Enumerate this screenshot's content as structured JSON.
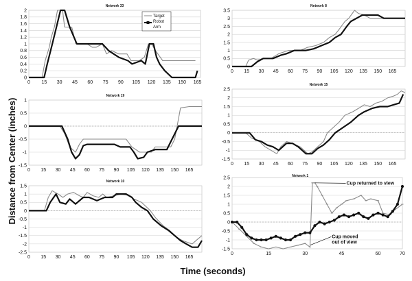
{
  "figure": {
    "ylabel": "Distance from Center (inches)",
    "xlabel": "Time (seconds)"
  },
  "chart_data": [
    {
      "type": "line",
      "title": "Network 33",
      "xlim": [
        0,
        168
      ],
      "ylim": [
        0,
        2
      ],
      "xticks": [
        0,
        15,
        30,
        45,
        60,
        75,
        90,
        105,
        120,
        135,
        150,
        165
      ],
      "yticks": [
        0,
        0.2,
        0.4,
        0.6,
        0.8,
        1,
        1.2,
        1.4,
        1.6,
        1.8,
        2
      ],
      "ytick_labels": [
        "0",
        "0.2",
        "0.4",
        "0.6",
        "0.8",
        "1",
        "1.2",
        "1.4",
        "1.6",
        "1.8",
        "2"
      ],
      "legend": {
        "placement": "top-center",
        "entries": [
          "Target",
          "Robot Arm"
        ]
      },
      "series": [
        {
          "name": "Target",
          "color": "#8a8a8a",
          "x": [
            0,
            13,
            16,
            20,
            22,
            25,
            28,
            33,
            35,
            42,
            46,
            57,
            62,
            66,
            72,
            76,
            81,
            88,
            96,
            100,
            108,
            113,
            117,
            120,
            124,
            131,
            137,
            163
          ],
          "y": [
            0,
            0,
            0.5,
            0.9,
            1.2,
            1.5,
            2,
            2,
            1.5,
            1.5,
            1,
            1,
            0.9,
            0.9,
            1,
            0.7,
            0.8,
            0.7,
            0.7,
            0.5,
            0.5,
            0.6,
            1,
            1,
            0.8,
            0.5,
            0.5,
            0.5
          ]
        },
        {
          "name": "Robot Arm",
          "color": "#111111",
          "x": [
            0,
            15,
            18,
            23,
            27,
            31,
            35,
            40,
            47,
            58,
            72,
            78,
            88,
            97,
            101,
            110,
            114,
            118,
            122,
            125,
            128,
            133,
            140,
            163,
            165
          ],
          "y": [
            0,
            0,
            0.4,
            1,
            1.5,
            2,
            2,
            1.5,
            1,
            1,
            1,
            0.8,
            0.6,
            0.5,
            0.4,
            0.5,
            0.4,
            1,
            1,
            0.6,
            0.4,
            0.2,
            0,
            0,
            0.2
          ]
        }
      ]
    },
    {
      "type": "line",
      "title": "Network 19",
      "xlim": [
        0,
        178
      ],
      "ylim": [
        -1.5,
        1
      ],
      "xticks": [
        0,
        15,
        30,
        45,
        60,
        75,
        90,
        105,
        120,
        135,
        150,
        165
      ],
      "yticks": [
        -1.5,
        -1,
        -0.5,
        0,
        0.5,
        1
      ],
      "ytick_labels": [
        "-1.5",
        "-1",
        "-0.5",
        "0",
        "0.5",
        "1"
      ],
      "series": [
        {
          "name": "Target",
          "color": "#8a8a8a",
          "x": [
            0,
            32,
            37,
            42,
            48,
            52,
            54,
            56,
            60,
            100,
            106,
            114,
            126,
            130,
            146,
            150,
            156,
            165,
            178
          ],
          "y": [
            0,
            0,
            -0.3,
            -0.8,
            -1,
            -0.7,
            -0.6,
            -0.5,
            -0.5,
            -0.5,
            -0.8,
            -1,
            -1,
            -0.8,
            -0.8,
            -0.5,
            0.7,
            0.75,
            0.75
          ]
        },
        {
          "name": "Robot Arm",
          "color": "#111111",
          "x": [
            0,
            34,
            40,
            44,
            48,
            52,
            56,
            60,
            88,
            94,
            104,
            108,
            112,
            118,
            122,
            130,
            142,
            146,
            150,
            154,
            178
          ],
          "y": [
            0,
            0,
            -0.5,
            -1,
            -1.25,
            -1.1,
            -0.75,
            -0.7,
            -0.7,
            -0.8,
            -0.8,
            -1,
            -1.25,
            -1.2,
            -1,
            -0.9,
            -0.9,
            -0.6,
            -0.3,
            0,
            0
          ]
        }
      ]
    },
    {
      "type": "line",
      "title": "Network 10",
      "xlim": [
        0,
        178
      ],
      "ylim": [
        -2.5,
        1.5
      ],
      "xticks": [
        0,
        15,
        30,
        45,
        60,
        75,
        90,
        105,
        120,
        135,
        150,
        165
      ],
      "yticks": [
        -2.5,
        -2,
        -1.5,
        -1,
        -0.5,
        0,
        0.5,
        1,
        1.5
      ],
      "ytick_labels": [
        "-2.5",
        "-2",
        "-1.5",
        "-1",
        "-0.5",
        "0",
        "0.5",
        "1",
        "1.5"
      ],
      "series": [
        {
          "name": "Target",
          "color": "#8a8a8a",
          "x": [
            0,
            16,
            20,
            24,
            30,
            35,
            40,
            46,
            52,
            56,
            60,
            66,
            72,
            76,
            80,
            88,
            95,
            104,
            108,
            112,
            116,
            125,
            130,
            138,
            145,
            152,
            158,
            168,
            174,
            178
          ],
          "y": [
            0,
            0,
            0.8,
            1.2,
            1,
            0.8,
            1,
            1.1,
            0.9,
            0.8,
            1.1,
            0.9,
            0.8,
            1,
            0.8,
            0.9,
            1,
            0.9,
            0.7,
            0.6,
            0.5,
            0,
            -0.4,
            -0.9,
            -1.2,
            -1.6,
            -1.8,
            -2,
            -1.7,
            -1.5
          ]
        },
        {
          "name": "Robot Arm",
          "color": "#111111",
          "x": [
            0,
            18,
            22,
            28,
            32,
            38,
            42,
            48,
            56,
            62,
            70,
            78,
            86,
            90,
            100,
            106,
            110,
            116,
            122,
            128,
            136,
            144,
            150,
            156,
            162,
            168,
            174,
            178
          ],
          "y": [
            0,
            0,
            0.5,
            1,
            0.5,
            0.4,
            0.7,
            0.4,
            0.8,
            0.8,
            0.6,
            0.8,
            0.8,
            1,
            1,
            0.8,
            0.5,
            0.2,
            0,
            -0.5,
            -0.9,
            -1.2,
            -1.5,
            -1.8,
            -2,
            -2.2,
            -2.2,
            -1.8
          ]
        }
      ]
    },
    {
      "type": "line",
      "title": "Network 8",
      "xlim": [
        0,
        178
      ],
      "ylim": [
        0,
        3.5
      ],
      "xticks": [
        0,
        15,
        30,
        45,
        60,
        75,
        90,
        105,
        120,
        135,
        150,
        165
      ],
      "yticks": [
        0,
        0.5,
        1,
        1.5,
        2,
        2.5,
        3,
        3.5
      ],
      "ytick_labels": [
        "0",
        "0.5",
        "1",
        "1.5",
        "2",
        "2.5",
        "3",
        "3.5"
      ],
      "series": [
        {
          "name": "Target",
          "color": "#8a8a8a",
          "x": [
            0,
            14,
            17,
            22,
            26,
            34,
            40,
            48,
            58,
            70,
            78,
            86,
            94,
            100,
            106,
            110,
            116,
            120,
            126,
            130,
            136,
            142,
            150,
            178
          ],
          "y": [
            0,
            0,
            0.4,
            0.5,
            0.4,
            0.5,
            0.5,
            0.8,
            1,
            1,
            1.2,
            1.3,
            1.5,
            1.8,
            2,
            2.3,
            2.8,
            3,
            3.5,
            3.3,
            3.2,
            3,
            3,
            3
          ]
        },
        {
          "name": "Robot Arm",
          "color": "#111111",
          "x": [
            0,
            20,
            26,
            32,
            42,
            50,
            56,
            64,
            76,
            84,
            92,
            100,
            106,
            112,
            118,
            122,
            128,
            134,
            140,
            150,
            156,
            178
          ],
          "y": [
            0,
            0,
            0.3,
            0.5,
            0.5,
            0.7,
            0.8,
            1,
            1,
            1.1,
            1.3,
            1.5,
            1.8,
            2,
            2.5,
            2.8,
            3,
            3.2,
            3.2,
            3.2,
            3,
            3
          ]
        }
      ]
    },
    {
      "type": "line",
      "title": "Network 15",
      "xlim": [
        0,
        178
      ],
      "ylim": [
        -1.5,
        2.5
      ],
      "xticks": [
        0,
        15,
        30,
        45,
        60,
        75,
        90,
        105,
        120,
        135,
        150,
        165
      ],
      "yticks": [
        -1.5,
        -1,
        -0.5,
        0,
        0.5,
        1,
        1.5,
        2,
        2.5
      ],
      "ytick_labels": [
        "-1.5",
        "-1",
        "-0.5",
        "0",
        "0.5",
        "1",
        "1.5",
        "2",
        "2.5"
      ],
      "series": [
        {
          "name": "Target",
          "color": "#8a8a8a",
          "x": [
            0,
            14,
            20,
            28,
            34,
            40,
            46,
            50,
            56,
            62,
            70,
            74,
            78,
            82,
            88,
            94,
            98,
            104,
            110,
            116,
            124,
            130,
            136,
            142,
            148,
            154,
            160,
            166,
            170,
            174,
            178
          ],
          "y": [
            0,
            0,
            -0.3,
            -0.5,
            -0.8,
            -1,
            -1.2,
            -0.8,
            -0.5,
            -0.6,
            -0.8,
            -1,
            -1.2,
            -1.1,
            -0.8,
            -0.5,
            0,
            0.3,
            0.6,
            1,
            1.2,
            1.4,
            1.6,
            1.5,
            1.7,
            1.8,
            2,
            2.1,
            2.2,
            2.4,
            2.3
          ]
        },
        {
          "name": "Robot Arm",
          "color": "#111111",
          "x": [
            0,
            18,
            24,
            30,
            36,
            42,
            48,
            56,
            62,
            68,
            76,
            82,
            88,
            94,
            100,
            106,
            114,
            122,
            130,
            136,
            144,
            152,
            160,
            166,
            172,
            176
          ],
          "y": [
            0,
            0,
            -0.4,
            -0.5,
            -0.7,
            -0.8,
            -1,
            -0.6,
            -0.6,
            -0.8,
            -1.2,
            -1.2,
            -0.9,
            -0.7,
            -0.4,
            0,
            0.3,
            0.6,
            1,
            1.2,
            1.4,
            1.5,
            1.5,
            1.6,
            1.7,
            2.2
          ]
        }
      ]
    },
    {
      "type": "line",
      "title": "Network 1",
      "xlim": [
        0,
        70
      ],
      "ylim": [
        -1.5,
        2.5
      ],
      "xticks": [
        0,
        15,
        30,
        45,
        60,
        70
      ],
      "yticks": [
        -1.5,
        -1,
        -0.5,
        0,
        0.5,
        1,
        1.5,
        2,
        2.5
      ],
      "ytick_labels": [
        "-1.5",
        "-1",
        "-0.5",
        "0",
        "0.5",
        "1",
        "1.5",
        "2",
        "2.5"
      ],
      "series": [
        {
          "name": "Target",
          "color": "#8a8a8a",
          "x": [
            0,
            3,
            6,
            9,
            12,
            15,
            18,
            21,
            24,
            27,
            30,
            32,
            33,
            34,
            35,
            37,
            39,
            41,
            43,
            45,
            47,
            50,
            53,
            55,
            57,
            60,
            62,
            65,
            67,
            70
          ],
          "y": [
            0,
            -0.4,
            -0.8,
            -1.2,
            -1.4,
            -1.5,
            -1.4,
            -1.5,
            -1.4,
            -1.3,
            -1.2,
            -1.4,
            2.2,
            2.2,
            2,
            1.5,
            1,
            0.5,
            0.8,
            1,
            1.2,
            1.3,
            1.5,
            1.2,
            1.3,
            1.2,
            0.5,
            0.4,
            0.7,
            1
          ]
        },
        {
          "name": "Robot Arm",
          "color": "#111111",
          "x": [
            0,
            2,
            4,
            6,
            8,
            10,
            12,
            14,
            16,
            18,
            20,
            22,
            24,
            26,
            28,
            30,
            32,
            34,
            36,
            38,
            40,
            42,
            44,
            46,
            48,
            50,
            52,
            54,
            56,
            58,
            60,
            62,
            64,
            66,
            68,
            70
          ],
          "y": [
            0,
            0,
            -0.3,
            -0.7,
            -0.9,
            -1,
            -1,
            -1,
            -0.9,
            -0.8,
            -0.9,
            -1,
            -1,
            -0.8,
            -0.7,
            -0.6,
            -0.6,
            -0.2,
            0,
            -0.1,
            0,
            0.1,
            0.3,
            0.4,
            0.3,
            0.4,
            0.5,
            0.3,
            0.2,
            0.4,
            0.5,
            0.4,
            0.3,
            0.6,
            1,
            2
          ]
        }
      ],
      "annotations": [
        {
          "text_lines": [
            "Cup returned to view"
          ],
          "target_x": 34,
          "target_y": 2.2,
          "text_x": 47,
          "text_y": 2.1
        },
        {
          "text_lines": [
            "Cup moved",
            "out of view"
          ],
          "target_x": 32,
          "target_y": -1.3,
          "text_x": 41,
          "text_y": -0.9
        }
      ]
    }
  ]
}
